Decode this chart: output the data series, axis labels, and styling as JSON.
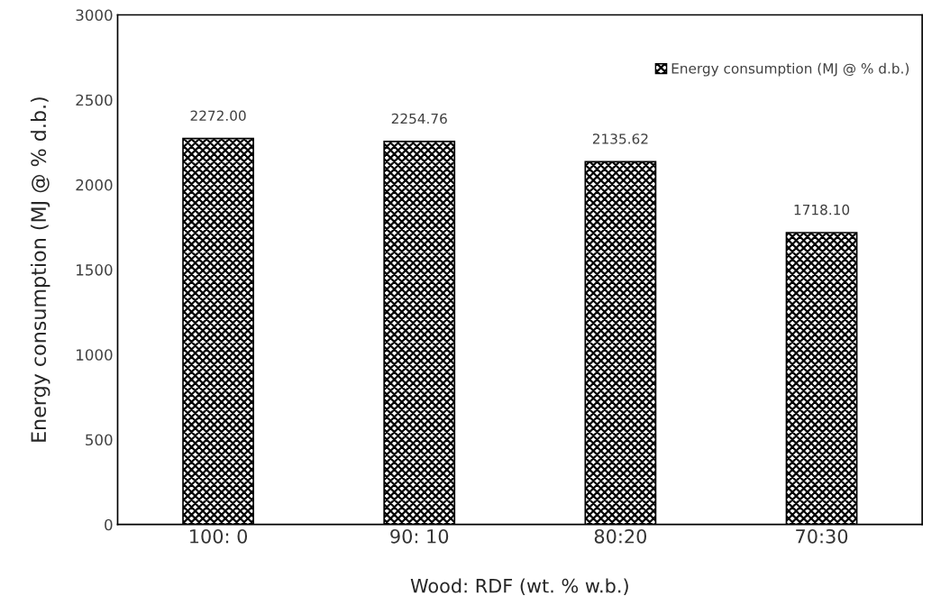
{
  "chart_data": {
    "type": "bar",
    "xlabel": "Wood: RDF (wt. % w.b.)",
    "ylabel": "Energy consumption (MJ @ % d.b.)",
    "categories": [
      "100: 0",
      "90: 10",
      "80:20",
      "70:30"
    ],
    "series": [
      {
        "name": "Energy consumption (MJ @ % d.b.)",
        "color": "#000000",
        "values": [
          2272.0,
          2254.76,
          2135.62,
          1718.1
        ]
      }
    ],
    "value_labels": [
      "2272.00",
      "2254.76",
      "2135.62",
      "1718.10"
    ],
    "ylim": [
      0,
      3000
    ],
    "yticks": [
      0,
      500,
      1000,
      1500,
      2000,
      2500,
      3000
    ],
    "grid": false,
    "legend": "top right"
  }
}
